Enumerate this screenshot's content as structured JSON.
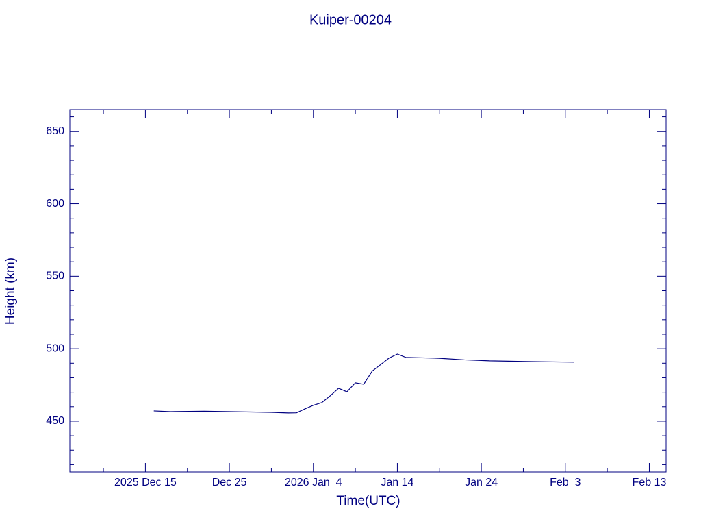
{
  "chart_data": {
    "type": "line",
    "title": "Kuiper-00204",
    "x_label": "Time(UTC)",
    "y_label": "Height (km)",
    "color": "#000080",
    "x": [
      "2025-12-16",
      "2025-12-18",
      "2025-12-22",
      "2025-12-27",
      "2025-12-30",
      "2026-01-01",
      "2026-01-02",
      "2026-01-03",
      "2026-01-04",
      "2026-01-05",
      "2026-01-06",
      "2026-01-07",
      "2026-01-08",
      "2026-01-09",
      "2026-01-10",
      "2026-01-11",
      "2026-01-12",
      "2026-01-13",
      "2026-01-14",
      "2026-01-15",
      "2026-01-19",
      "2026-01-22",
      "2026-01-25",
      "2026-01-30",
      "2026-02-04"
    ],
    "values": [
      457.1,
      456.6,
      456.9,
      456.4,
      456.1,
      455.7,
      455.8,
      458.5,
      461.0,
      462.8,
      467.5,
      472.7,
      470.3,
      476.5,
      475.5,
      484.5,
      489.0,
      493.5,
      496.3,
      494.0,
      493.4,
      492.3,
      491.6,
      491.1,
      490.7
    ],
    "xlim": [
      "2025-12-06",
      "2026-02-15"
    ],
    "xticks": [
      {
        "value": "2025-12-15",
        "label": "2025 Dec 15"
      },
      {
        "value": "2025-12-25",
        "label": "Dec 25"
      },
      {
        "value": "2026-01-04",
        "label": "2026 Jan  4"
      },
      {
        "value": "2026-01-14",
        "label": "Jan 14"
      },
      {
        "value": "2026-01-24",
        "label": "Jan 24"
      },
      {
        "value": "2026-02-03",
        "label": "Feb  3"
      },
      {
        "value": "2026-02-13",
        "label": "Feb 13"
      }
    ],
    "xminorticks": [
      "2025-12-10",
      "2025-12-20",
      "2025-12-30",
      "2026-01-09",
      "2026-01-19",
      "2026-01-29",
      "2026-02-08"
    ],
    "ylim": [
      415,
      665
    ],
    "yticks": [
      450,
      500,
      550,
      600,
      650
    ],
    "yminorticks": [
      420,
      430,
      440,
      460,
      470,
      480,
      490,
      510,
      520,
      530,
      540,
      560,
      570,
      580,
      590,
      610,
      620,
      630,
      640,
      660
    ]
  }
}
